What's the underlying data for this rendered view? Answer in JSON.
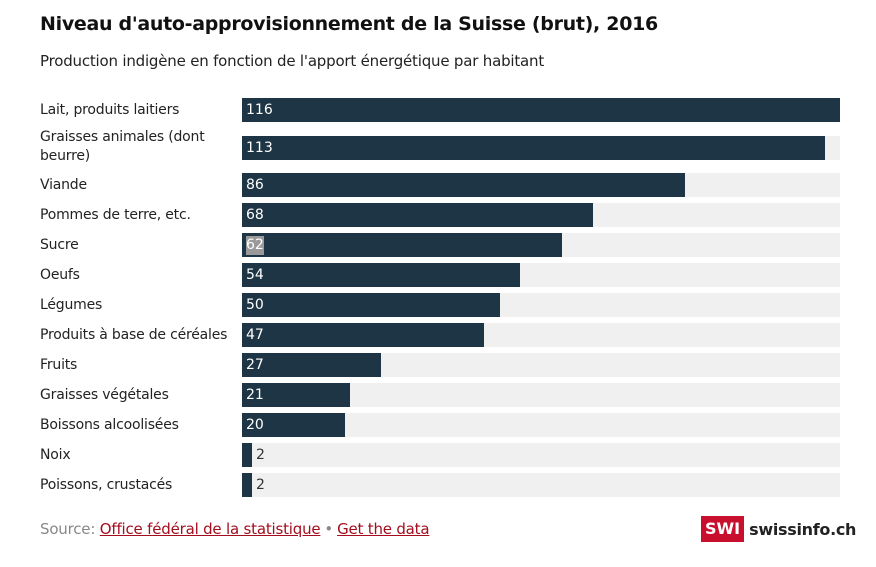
{
  "chart_data": {
    "type": "bar",
    "orientation": "horizontal",
    "title": "Niveau d'auto-approvisionnement de la Suisse (brut), 2016",
    "subtitle": "Production indigène en fonction de l'apport énergétique par habitant",
    "xlabel": "",
    "ylabel": "",
    "xlim": [
      0,
      116
    ],
    "grid": false,
    "categories": [
      "Lait, produits laitiers",
      "Graisses animales (dont beurre)",
      "Viande",
      "Pommes de terre, etc.",
      "Sucre",
      "Oeufs",
      "Légumes",
      "Produits à base de céréales",
      "Fruits",
      "Graisses végétales",
      "Boissons alcoolisées",
      "Noix",
      "Poissons, crustacés"
    ],
    "values": [
      116,
      113,
      86,
      68,
      62,
      54,
      50,
      47,
      27,
      21,
      20,
      2,
      2
    ],
    "value_labels": [
      "116",
      "113",
      "86",
      "68",
      "62",
      "54",
      "50",
      "47",
      "27",
      "21",
      "20",
      "2",
      "2"
    ],
    "selected_label_index": 4
  },
  "colors": {
    "bar": "#1d3544",
    "track": "#f0f0f0",
    "link": "#a30d1e",
    "brand": "#c8102e"
  },
  "footer": {
    "source_prefix": "Source:",
    "source_link": "Office fédéral de la statistique",
    "separator": "•",
    "data_link": "Get the data"
  },
  "logo": {
    "badge": "SWI",
    "name": "swissinfo.ch"
  }
}
